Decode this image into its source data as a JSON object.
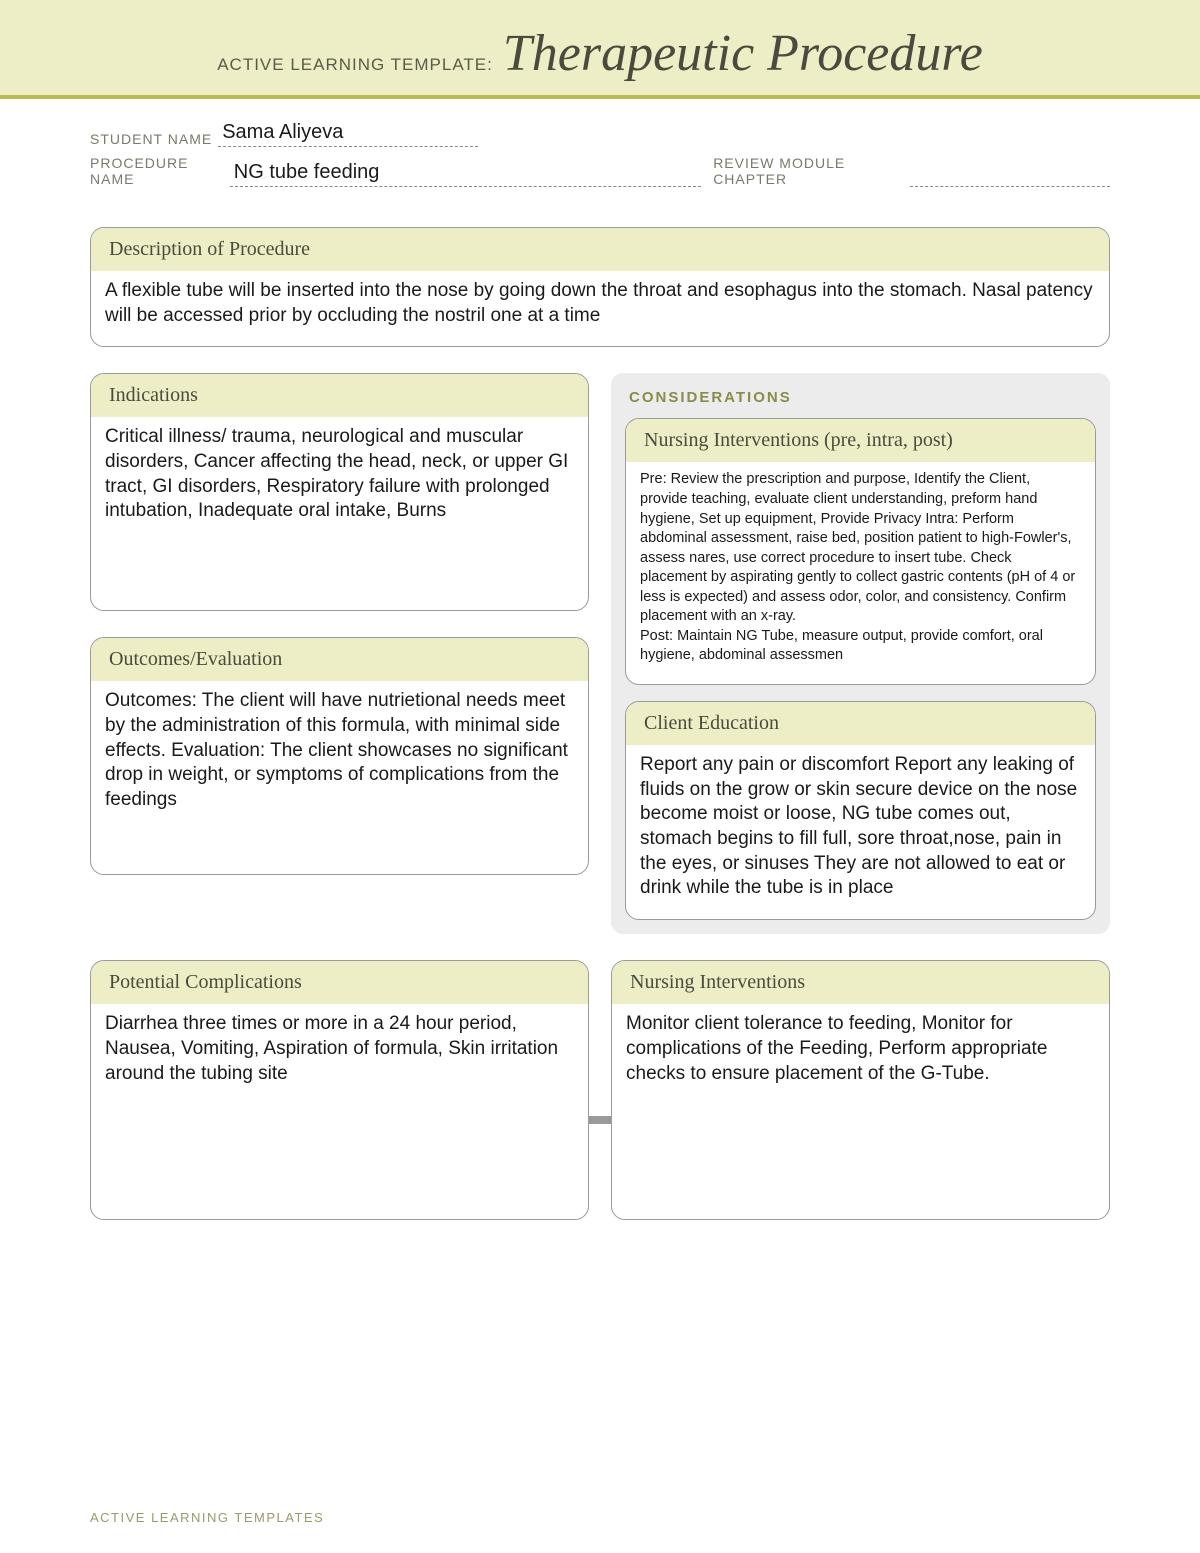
{
  "banner": {
    "label": "ACTIVE LEARNING TEMPLATE:",
    "title": "Therapeutic Procedure"
  },
  "meta": {
    "student_label": "STUDENT NAME",
    "student_value": "Sama Aliyeva",
    "procedure_label": "PROCEDURE NAME",
    "procedure_value": "NG tube feeding",
    "review_label": "REVIEW MODULE CHAPTER",
    "review_value": ""
  },
  "description": {
    "title": "Description of Procedure",
    "body": "A flexible tube will be inserted into the nose by going down the throat and esophagus into the stomach. Nasal patency will be accessed prior by occluding the nostril one at a time"
  },
  "indications": {
    "title": "Indications",
    "body": "Critical illness/ trauma, neurological and muscular disorders, Cancer affecting the head, neck, or upper GI tract, GI disorders, Respiratory failure with prolonged intubation, Inadequate oral intake, Burns"
  },
  "outcomes": {
    "title": "Outcomes/Evaluation",
    "body": "Outcomes: The client will have nutrietional needs meet by the administration of this formula, with minimal side effects. Evaluation: The client showcases no significant drop in weight, or symptoms of complications from the feedings"
  },
  "considerations_label": "CONSIDERATIONS",
  "nursing_pre": {
    "title": "Nursing Interventions (pre, intra, post)",
    "body": "Pre: Review the prescription and purpose, Identify the Client, provide teaching, evaluate client understanding, preform hand hygiene, Set up equipment, Provide Privacy Intra: Perform abdominal assessment, raise bed, position patient to high-Fowler's, assess nares, use correct procedure to insert tube. Check placement by aspirating gently to collect gastric contents (pH of 4 or less is expected) and assess odor, color, and consistency. Confirm placement with an x-ray.\nPost: Maintain NG Tube, measure output, provide comfort, oral hygiene, abdominal assessmen"
  },
  "client_ed": {
    "title": "Client Education",
    "body": "Report any pain or discomfort Report any leaking of fluids on the grow or skin secure device on the nose become moist or loose, NG tube comes out, stomach begins to fill full, sore throat,nose, pain in the eyes, or sinuses They are not allowed to eat or drink while the tube is in place"
  },
  "complications": {
    "title": "Potential Complications",
    "body": "Diarrhea three times or more in a 24 hour period, Nausea, Vomiting, Aspiration of formula, Skin irritation around the tubing site"
  },
  "nursing_int": {
    "title": "Nursing Interventions",
    "body": "Monitor client tolerance to feeding, Monitor for complications of the Feeding, Perform appropriate checks to ensure placement of the G-Tube."
  },
  "footer": "ACTIVE LEARNING TEMPLATES"
}
